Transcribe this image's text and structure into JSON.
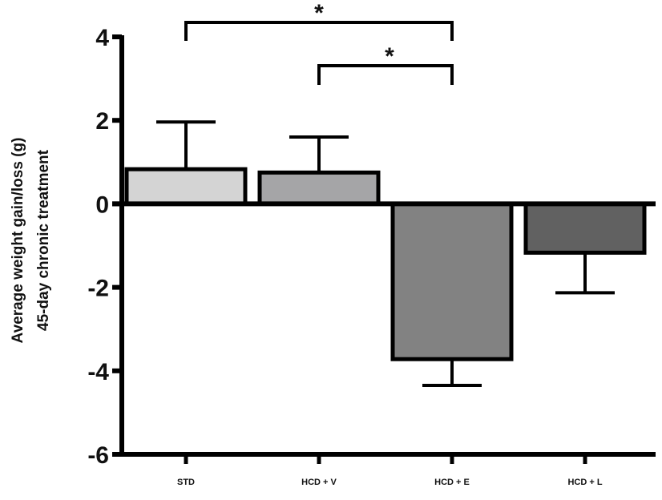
{
  "chart_data": {
    "type": "bar",
    "title": "",
    "xlabel": "",
    "ylabel": [
      "Average weight gain/loss (g)",
      "45-day chronic treatment"
    ],
    "ylim": [
      -6,
      4
    ],
    "yticks": [
      4,
      2,
      0,
      -2,
      -4,
      -6
    ],
    "ytick_labels": [
      "4",
      "2",
      "0",
      "-2",
      "-4",
      "-6"
    ],
    "grid": false,
    "legend": null,
    "categories": [
      "STD",
      "HCD + V",
      "HCD + E",
      "HCD + L"
    ],
    "values": [
      0.83,
      0.75,
      -3.72,
      -1.17
    ],
    "error_bars": [
      1.13,
      0.85,
      0.63,
      0.96
    ],
    "bar_colors": [
      "#d4d4d4",
      "#a5a5a7",
      "#828282",
      "#616161"
    ],
    "annotations": [
      {
        "type": "significance",
        "from": "STD",
        "to": "HCD + E",
        "label": "*"
      },
      {
        "type": "significance",
        "from": "HCD + V",
        "to": "HCD + E",
        "label": "*"
      }
    ]
  }
}
